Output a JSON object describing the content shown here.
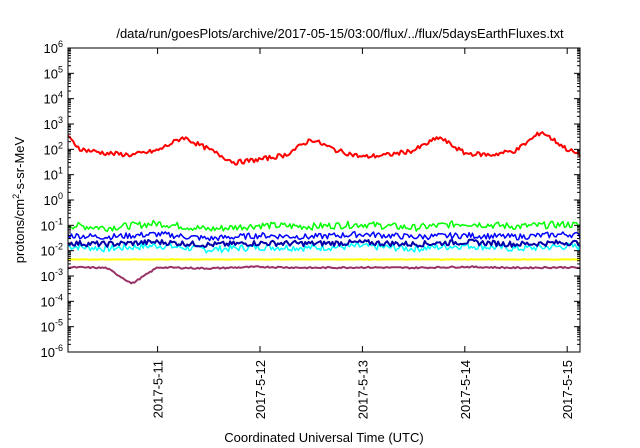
{
  "chart_data": {
    "type": "line",
    "title": "/data/run/goesPlots/archive/2017-05-15/03:00/flux/../flux/5daysEarthFluxes.txt",
    "xlabel": "Coordinated Universal Time (UTC)",
    "ylabel": {
      "base": "protons/cm",
      "sup": "2",
      "rest": "-s-sr-MeV"
    },
    "y_scale": "log",
    "ylim": [
      1e-06,
      1000000.0
    ],
    "y_ticks": [
      {
        "base": "10",
        "exp": "-6",
        "value": 1e-06
      },
      {
        "base": "10",
        "exp": "-5",
        "value": 1e-05
      },
      {
        "base": "10",
        "exp": "-4",
        "value": 0.0001
      },
      {
        "base": "10",
        "exp": "-3",
        "value": 0.001
      },
      {
        "base": "10",
        "exp": "-2",
        "value": 0.01
      },
      {
        "base": "10",
        "exp": "-1",
        "value": 0.1
      },
      {
        "base": "10",
        "exp": "0",
        "value": 1
      },
      {
        "base": "10",
        "exp": "1",
        "value": 10
      },
      {
        "base": "10",
        "exp": "2",
        "value": 100
      },
      {
        "base": "10",
        "exp": "3",
        "value": 1000
      },
      {
        "base": "10",
        "exp": "4",
        "value": 10000
      },
      {
        "base": "10",
        "exp": "5",
        "value": 100000
      },
      {
        "base": "10",
        "exp": "6",
        "value": 1000000
      }
    ],
    "xlim": [
      "2017-05-10 03:00",
      "2017-05-15 03:00"
    ],
    "x_ticks": [
      {
        "label": "2017-5-11",
        "value": "2017-05-11 00:00"
      },
      {
        "label": "2017-5-12",
        "value": "2017-05-12 00:00"
      },
      {
        "label": "2017-5-13",
        "value": "2017-05-13 00:00"
      },
      {
        "label": "2017-5-14",
        "value": "2017-05-14 00:00"
      },
      {
        "label": "2017-5-15",
        "value": "2017-05-15 00:00"
      }
    ],
    "grid": false,
    "legend": "none",
    "series": [
      {
        "color": "#ff0000",
        "x": [
          "2017-05-10 03:00",
          "2017-05-10 06:00",
          "2017-05-10 12:00",
          "2017-05-10 18:00",
          "2017-05-11 00:00",
          "2017-05-11 06:00",
          "2017-05-11 12:00",
          "2017-05-11 18:00",
          "2017-05-12 00:00",
          "2017-05-12 06:00",
          "2017-05-12 12:00",
          "2017-05-12 18:00",
          "2017-05-13 00:00",
          "2017-05-13 06:00",
          "2017-05-13 12:00",
          "2017-05-13 18:00",
          "2017-05-14 00:00",
          "2017-05-14 06:00",
          "2017-05-14 12:00",
          "2017-05-14 18:00",
          "2017-05-15 00:00",
          "2017-05-15 03:00"
        ],
        "y": [
          300,
          100,
          70,
          60,
          90,
          300,
          100,
          30,
          40,
          60,
          250,
          90,
          50,
          60,
          90,
          300,
          70,
          60,
          90,
          500,
          100,
          60
        ]
      },
      {
        "color": "#00ff00",
        "x": [
          "2017-05-10 03:00",
          "2017-05-10 12:00",
          "2017-05-11 00:00",
          "2017-05-11 12:00",
          "2017-05-12 00:00",
          "2017-05-12 12:00",
          "2017-05-13 00:00",
          "2017-05-13 12:00",
          "2017-05-14 00:00",
          "2017-05-14 12:00",
          "2017-05-15 00:00",
          "2017-05-15 03:00"
        ],
        "y": [
          0.1,
          0.08,
          0.12,
          0.07,
          0.1,
          0.09,
          0.11,
          0.08,
          0.12,
          0.09,
          0.11,
          0.1
        ]
      },
      {
        "color": "#0000ff",
        "x": [
          "2017-05-10 03:00",
          "2017-05-10 12:00",
          "2017-05-11 00:00",
          "2017-05-11 12:00",
          "2017-05-12 00:00",
          "2017-05-12 12:00",
          "2017-05-13 00:00",
          "2017-05-13 12:00",
          "2017-05-14 00:00",
          "2017-05-14 12:00",
          "2017-05-15 00:00",
          "2017-05-15 03:00"
        ],
        "y": [
          0.04,
          0.035,
          0.045,
          0.03,
          0.04,
          0.035,
          0.045,
          0.035,
          0.04,
          0.035,
          0.045,
          0.04
        ]
      },
      {
        "color": "#00ffff",
        "x": [
          "2017-05-10 03:00",
          "2017-05-10 12:00",
          "2017-05-11 00:00",
          "2017-05-11 12:00",
          "2017-05-12 00:00",
          "2017-05-12 12:00",
          "2017-05-13 00:00",
          "2017-05-13 12:00",
          "2017-05-14 00:00",
          "2017-05-14 12:00",
          "2017-05-15 00:00",
          "2017-05-15 03:00"
        ],
        "y": [
          0.015,
          0.012,
          0.016,
          0.011,
          0.014,
          0.013,
          0.015,
          0.012,
          0.016,
          0.012,
          0.015,
          0.014
        ]
      },
      {
        "color": "#0000aa",
        "x": [
          "2017-05-10 03:00",
          "2017-05-10 12:00",
          "2017-05-11 00:00",
          "2017-05-11 12:00",
          "2017-05-12 00:00",
          "2017-05-12 12:00",
          "2017-05-13 00:00",
          "2017-05-13 12:00",
          "2017-05-14 00:00",
          "2017-05-14 12:00",
          "2017-05-15 00:00",
          "2017-05-15 03:00"
        ],
        "y": [
          0.02,
          0.018,
          0.022,
          0.017,
          0.02,
          0.019,
          0.021,
          0.018,
          0.022,
          0.018,
          0.021,
          0.02
        ]
      },
      {
        "color": "#ffff00",
        "x": [
          "2017-05-10 03:00",
          "2017-05-11 00:00",
          "2017-05-12 00:00",
          "2017-05-13 00:00",
          "2017-05-14 00:00",
          "2017-05-15 00:00",
          "2017-05-15 03:00"
        ],
        "y": [
          0.0045,
          0.0045,
          0.0045,
          0.0045,
          0.0045,
          0.0045,
          0.0045
        ]
      },
      {
        "color": "#993366",
        "x": [
          "2017-05-10 03:00",
          "2017-05-10 12:00",
          "2017-05-10 18:00",
          "2017-05-11 00:00",
          "2017-05-11 12:00",
          "2017-05-12 00:00",
          "2017-05-12 12:00",
          "2017-05-13 00:00",
          "2017-05-13 12:00",
          "2017-05-14 00:00",
          "2017-05-14 12:00",
          "2017-05-15 00:00",
          "2017-05-15 03:00"
        ],
        "y": [
          0.0022,
          0.0021,
          0.0005,
          0.0022,
          0.002,
          0.0023,
          0.0021,
          0.0022,
          0.0021,
          0.0023,
          0.0021,
          0.0022,
          0.0021
        ]
      }
    ]
  }
}
